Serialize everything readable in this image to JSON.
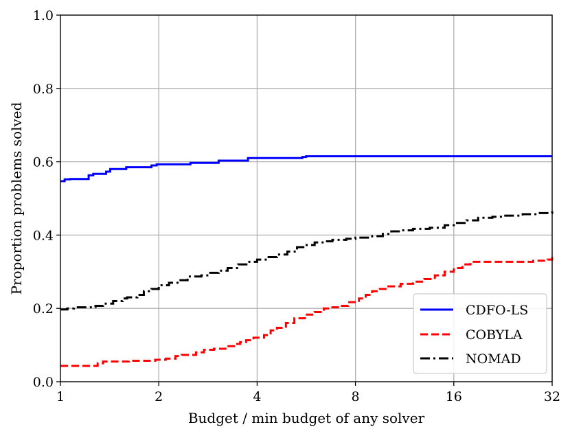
{
  "chart_data": {
    "type": "line",
    "title": "",
    "xlabel": "Budget / min budget of any solver",
    "ylabel": "Proportion problems solved",
    "x_scale": "log2",
    "xlim": [
      1,
      32
    ],
    "ylim": [
      0,
      1
    ],
    "x_ticks": [
      1,
      2,
      4,
      8,
      16,
      32
    ],
    "x_tick_labels": [
      "1",
      "2",
      "4",
      "8",
      "16",
      "32"
    ],
    "y_ticks": [
      0,
      0.2,
      0.4,
      0.6,
      0.8,
      1.0
    ],
    "y_tick_labels": [
      "0.0",
      "0.2",
      "0.4",
      "0.6",
      "0.8",
      "1.0"
    ],
    "grid": true,
    "legend_position": "lower-right",
    "series": [
      {
        "name": "CDFO-LS",
        "color": "#0000ff",
        "style": "solid",
        "x": [
          1,
          1.03,
          1.07,
          1.18,
          1.22,
          1.26,
          1.35,
          1.38,
          1.42,
          1.55,
          1.59,
          1.65,
          1.85,
          1.9,
          1.97,
          2.45,
          2.5,
          2.58,
          3.0,
          3.05,
          3.15,
          3.7,
          3.75,
          3.82,
          5.4,
          5.5,
          5.65,
          32
        ],
        "y": [
          0.547,
          0.552,
          0.553,
          0.553,
          0.563,
          0.567,
          0.567,
          0.573,
          0.58,
          0.58,
          0.585,
          0.585,
          0.585,
          0.59,
          0.593,
          0.593,
          0.597,
          0.597,
          0.597,
          0.603,
          0.603,
          0.603,
          0.61,
          0.61,
          0.61,
          0.613,
          0.615,
          0.615
        ]
      },
      {
        "name": "COBYLA",
        "color": "#ff0000",
        "style": "dashed",
        "x": [
          1,
          1.25,
          1.3,
          1.35,
          1.55,
          1.62,
          1.7,
          1.95,
          2.0,
          2.1,
          2.25,
          2.35,
          2.5,
          2.6,
          2.75,
          2.95,
          3.1,
          3.2,
          3.4,
          3.55,
          3.7,
          3.9,
          4.2,
          4.4,
          4.6,
          4.9,
          5.2,
          5.6,
          6.0,
          6.4,
          6.8,
          7.2,
          7.6,
          8.2,
          8.6,
          9.0,
          9.5,
          10.0,
          11.0,
          12.0,
          13.0,
          14.0,
          15.0,
          16.0,
          17.0,
          18.0,
          20.0,
          24.0,
          28.0,
          31.0,
          32
        ],
        "y": [
          0.043,
          0.043,
          0.05,
          0.055,
          0.055,
          0.057,
          0.057,
          0.06,
          0.06,
          0.063,
          0.07,
          0.073,
          0.073,
          0.08,
          0.087,
          0.09,
          0.09,
          0.097,
          0.103,
          0.108,
          0.113,
          0.12,
          0.127,
          0.14,
          0.147,
          0.16,
          0.173,
          0.183,
          0.19,
          0.2,
          0.203,
          0.207,
          0.217,
          0.227,
          0.237,
          0.247,
          0.253,
          0.26,
          0.267,
          0.273,
          0.28,
          0.29,
          0.3,
          0.31,
          0.32,
          0.327,
          0.327,
          0.327,
          0.33,
          0.333,
          0.34
        ]
      },
      {
        "name": "NOMAD",
        "color": "#000000",
        "style": "dashdot",
        "x": [
          1,
          1.05,
          1.1,
          1.22,
          1.28,
          1.35,
          1.45,
          1.55,
          1.6,
          1.72,
          1.8,
          1.9,
          2.0,
          2.15,
          2.3,
          2.45,
          2.7,
          2.85,
          3.05,
          3.25,
          3.5,
          3.75,
          4.0,
          4.3,
          4.6,
          4.95,
          5.3,
          5.6,
          6.0,
          6.4,
          6.8,
          7.5,
          8.0,
          9.0,
          9.7,
          10.3,
          11.0,
          12.0,
          13.5,
          15.0,
          16.0,
          17.5,
          19.0,
          21.0,
          23.0,
          26.0,
          29.0,
          32
        ],
        "y": [
          0.197,
          0.2,
          0.203,
          0.203,
          0.207,
          0.213,
          0.22,
          0.227,
          0.23,
          0.237,
          0.247,
          0.253,
          0.263,
          0.27,
          0.277,
          0.287,
          0.29,
          0.297,
          0.303,
          0.31,
          0.32,
          0.327,
          0.333,
          0.34,
          0.347,
          0.355,
          0.367,
          0.373,
          0.38,
          0.383,
          0.387,
          0.39,
          0.393,
          0.397,
          0.403,
          0.41,
          0.413,
          0.417,
          0.42,
          0.427,
          0.433,
          0.44,
          0.447,
          0.45,
          0.453,
          0.457,
          0.46,
          0.467
        ]
      }
    ]
  }
}
